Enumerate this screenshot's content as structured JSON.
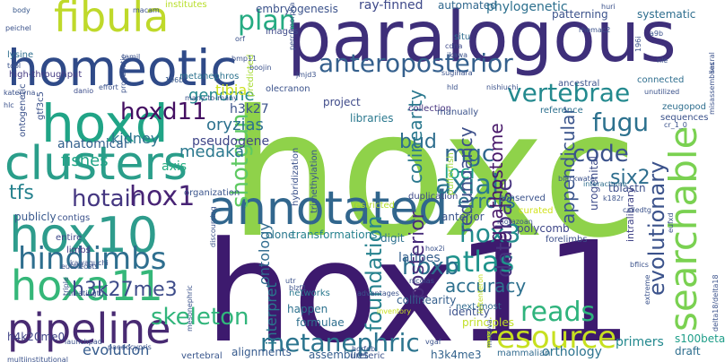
{
  "words": [
    {
      "text": "hoxc",
      "color": "#8fd24a"
    },
    {
      "text": "hox11",
      "color": "#3d1a6e"
    },
    {
      "text": "paralogous",
      "color": "#3e2f7a"
    },
    {
      "text": "annotated",
      "color": "#31668d"
    },
    {
      "text": "searchable",
      "color": "#7ad151"
    },
    {
      "text": "homeotic",
      "color": "#2f4a88"
    },
    {
      "text": "hoxd",
      "color": "#20a486"
    },
    {
      "text": "clusters",
      "color": "#2a9e8a"
    },
    {
      "text": "fibula",
      "color": "#bfd92a"
    },
    {
      "text": "hox10",
      "color": "#2e9c8c"
    },
    {
      "text": "hoxa11",
      "color": "#35b779"
    },
    {
      "text": "pipeline",
      "color": "#482a72"
    },
    {
      "text": "hindlimbs",
      "color": "#2e6e8e"
    },
    {
      "text": "resource",
      "color": "#c7e020"
    },
    {
      "text": "anteroposterior",
      "color": "#35608d"
    },
    {
      "text": "vertebrae",
      "color": "#23898e"
    },
    {
      "text": "plan",
      "color": "#25ab82"
    },
    {
      "text": "skeleton",
      "color": "#31b57b"
    },
    {
      "text": "metanephric",
      "color": "#2b748e"
    },
    {
      "text": "atlas",
      "color": "#1f938c"
    },
    {
      "text": "reads",
      "color": "#2eb37c"
    },
    {
      "text": "axial",
      "color": "#2a788e"
    },
    {
      "text": "code",
      "color": "#3b528b"
    },
    {
      "text": "fugu",
      "color": "#2c718e"
    },
    {
      "text": "shotgun",
      "color": "#5ec962"
    },
    {
      "text": "hotair",
      "color": "#453781"
    },
    {
      "text": "hox1",
      "color": "#482475"
    },
    {
      "text": "hoxd11",
      "color": "#440f62"
    },
    {
      "text": "hox3",
      "color": "#228c8d"
    },
    {
      "text": "hoxb",
      "color": "#2c718e"
    },
    {
      "text": "evolutionary",
      "color": "#3b528b"
    },
    {
      "text": "database",
      "color": "#46327e"
    },
    {
      "text": "foundation",
      "color": "#26828e"
    },
    {
      "text": "h3k27me3",
      "color": "#3e4c8a"
    },
    {
      "text": "tfs",
      "color": "#26828e"
    },
    {
      "text": "errors",
      "color": "#2c728e"
    },
    {
      "text": "accuracy",
      "color": "#2d708e"
    },
    {
      "text": "posterior",
      "color": "#472c7a"
    },
    {
      "text": "medaka",
      "color": "#2a788e"
    },
    {
      "text": "mgc",
      "color": "#31678e"
    },
    {
      "text": "bud",
      "color": "#2e6e8e"
    },
    {
      "text": "six2",
      "color": "#2e6e8e"
    },
    {
      "text": "colinearity",
      "color": "#2a788e"
    },
    {
      "text": "redundancy",
      "color": "#3c4f8a"
    },
    {
      "text": "appendicular",
      "color": "#3a548c"
    },
    {
      "text": "gnathostome",
      "color": "#48186a"
    },
    {
      "text": "loci",
      "color": "#1fa188"
    },
    {
      "text": "oryzias",
      "color": "#2c718e"
    },
    {
      "text": "genome",
      "color": "#23888e"
    },
    {
      "text": "kidney",
      "color": "#2b758e"
    },
    {
      "text": "fishes",
      "color": "#20a386"
    },
    {
      "text": "tibia",
      "color": "#cde11d"
    },
    {
      "text": "h3k27",
      "color": "#3b528b"
    },
    {
      "text": "pseudogene",
      "color": "#404688"
    },
    {
      "text": "anatomical",
      "color": "#34618d"
    },
    {
      "text": "axis",
      "color": "#27ad81"
    },
    {
      "text": "ontology",
      "color": "#2f6b8e"
    },
    {
      "text": "interpret",
      "color": "#2a788e"
    },
    {
      "text": "evolution",
      "color": "#365c8d"
    },
    {
      "text": "h4k20me0",
      "color": "#414487"
    },
    {
      "text": "ray-finned",
      "color": "#3e4989"
    },
    {
      "text": "embryogenesis",
      "color": "#3b528b"
    },
    {
      "text": "automated",
      "color": "#31688e"
    },
    {
      "text": "phylogenetic",
      "color": "#2d708e"
    },
    {
      "text": "patterning",
      "color": "#3b528b"
    },
    {
      "text": "systematic",
      "color": "#2e6e8e"
    },
    {
      "text": "project",
      "color": "#3e4a89"
    },
    {
      "text": "libraries",
      "color": "#2a788e"
    },
    {
      "text": "collection",
      "color": "#46337e"
    },
    {
      "text": "transformations",
      "color": "#26828e"
    },
    {
      "text": "clone",
      "color": "#2a788e"
    },
    {
      "text": "digit",
      "color": "#2d718e"
    },
    {
      "text": "anterior",
      "color": "#3a548c"
    },
    {
      "text": "duplication",
      "color": "#3e4a89"
    },
    {
      "text": "conserved",
      "color": "#3b528b"
    },
    {
      "text": "curated",
      "color": "#d2e21b"
    },
    {
      "text": "polycomb",
      "color": "#3f4788"
    },
    {
      "text": "latipes",
      "color": "#355f8d"
    },
    {
      "text": "orthology",
      "color": "#2c738e"
    },
    {
      "text": "primers",
      "color": "#23898e"
    },
    {
      "text": "mammalian",
      "color": "#306a8e"
    },
    {
      "text": "alignments",
      "color": "#375b8d"
    },
    {
      "text": "assemblies",
      "color": "#355e8d"
    },
    {
      "text": "h3k4me3",
      "color": "#33638d"
    },
    {
      "text": "identity",
      "color": "#3b518b"
    },
    {
      "text": "principles",
      "color": "#c0df25"
    },
    {
      "text": "formulae",
      "color": "#2e6f8e"
    },
    {
      "text": "happen",
      "color": "#2d718e"
    },
    {
      "text": "collinearity",
      "color": "#355f8d"
    },
    {
      "text": "vertebral",
      "color": "#39568c"
    },
    {
      "text": "s100beta",
      "color": "#1f9e89"
    },
    {
      "text": "draft",
      "color": "#2e6e8e"
    },
    {
      "text": "urogenital",
      "color": "#3e4c8a"
    },
    {
      "text": "tblastn",
      "color": "#3d4e8a"
    },
    {
      "text": "intralibrary",
      "color": "#414487"
    },
    {
      "text": "forelimbs",
      "color": "#3c4f8a"
    },
    {
      "text": "next-most",
      "color": "#306a8e"
    },
    {
      "text": "networks",
      "color": "#2a788e"
    },
    {
      "text": "ureteric",
      "color": "#3b528b"
    },
    {
      "text": "publicly",
      "color": "#38588c"
    },
    {
      "text": "entire",
      "color": "#3f4889"
    },
    {
      "text": "contigs",
      "color": "#3b528b"
    },
    {
      "text": "limbs",
      "color": "#453882"
    },
    {
      "text": "organization",
      "color": "#3a548c"
    },
    {
      "text": "restricted",
      "color": "#b5de2b"
    },
    {
      "text": "hybridization",
      "color": "#3b528b"
    },
    {
      "text": "trimethylation",
      "color": "#39558c"
    },
    {
      "text": "high-throughput",
      "color": "#443a83"
    },
    {
      "text": "lysine",
      "color": "#2e6e8e"
    },
    {
      "text": "tool",
      "color": "#3b528b"
    },
    {
      "text": "body",
      "color": "#38588c"
    },
    {
      "text": "danio",
      "color": "#3d4d8a"
    },
    {
      "text": "ontogenetic",
      "color": "#3b528b"
    },
    {
      "text": "gtf3c5",
      "color": "#3b528b"
    },
    {
      "text": "metanephros",
      "color": "#2c728e"
    },
    {
      "text": "images",
      "color": "#3e4a89"
    },
    {
      "text": "situ",
      "color": "#2e6e8e"
    },
    {
      "text": "manually",
      "color": "#3b528b"
    },
    {
      "text": "reference",
      "color": "#2d708e"
    },
    {
      "text": "ancestral",
      "color": "#3b528b"
    },
    {
      "text": "connected",
      "color": "#2e6e8e"
    },
    {
      "text": "cdna",
      "color": "#3e4989"
    },
    {
      "text": "institutes",
      "color": "#b8de29"
    },
    {
      "text": "macam",
      "color": "#3b528b"
    },
    {
      "text": "orf",
      "color": "#3b528b"
    },
    {
      "text": "196b",
      "color": "#38598c"
    },
    {
      "text": "pufferfish",
      "color": "#a0da39"
    },
    {
      "text": "interactome",
      "color": "#2e6e8e"
    },
    {
      "text": "calledtg",
      "color": "#3b528b"
    },
    {
      "text": "blackwater",
      "color": "#3b528b"
    },
    {
      "text": "k182r",
      "color": "#3b528b"
    },
    {
      "text": "motazoan",
      "color": "#3b528b"
    },
    {
      "text": "zeugopod",
      "color": "#2e6e8e"
    },
    {
      "text": "sequences",
      "color": "#3b528b"
    },
    {
      "text": "unutilized",
      "color": "#3b528b"
    },
    {
      "text": "sacral",
      "color": "#3b528b"
    },
    {
      "text": "peichel",
      "color": "#3b528b"
    },
    {
      "text": "kateryna",
      "color": "#3b528b"
    },
    {
      "text": "hlc",
      "color": "#3b528b"
    },
    {
      "text": "treatingtg",
      "color": "#3b528b"
    },
    {
      "text": "kawaguchi",
      "color": "#3b528b"
    },
    {
      "text": "launchpad",
      "color": "#3b528b"
    },
    {
      "text": "paedocypris",
      "color": "#3b528b"
    },
    {
      "text": "multiinstitutional",
      "color": "#3b528b"
    },
    {
      "text": "horfdb",
      "color": "#3b528b"
    },
    {
      "text": "vgaf",
      "color": "#3b528b"
    },
    {
      "text": "hox2i",
      "color": "#3b528b"
    },
    {
      "text": "leftenteron",
      "color": "#c2df23"
    },
    {
      "text": "olecranon",
      "color": "#3b528b"
    },
    {
      "text": "predicted",
      "color": "#a8db34"
    },
    {
      "text": "jmjd3",
      "color": "#3b528b"
    },
    {
      "text": "bmp11",
      "color": "#3b528b"
    },
    {
      "text": "boojin",
      "color": "#3b528b"
    },
    {
      "text": "ikawa",
      "color": "#3b528b"
    },
    {
      "text": "sugihara",
      "color": "#3b528b"
    },
    {
      "text": "hld",
      "color": "#3b528b"
    },
    {
      "text": "nishiuchi",
      "color": "#3b528b"
    },
    {
      "text": "rhemac2",
      "color": "#3b528b"
    },
    {
      "text": "a9b",
      "color": "#3b528b"
    },
    {
      "text": "196i",
      "color": "#3b528b"
    },
    {
      "text": "nle",
      "color": "#3b528b"
    },
    {
      "text": "cr_1_0",
      "color": "#3b528b"
    },
    {
      "text": "bflics",
      "color": "#3b528b"
    },
    {
      "text": "extreme",
      "color": "#3b528b"
    },
    {
      "text": "eufxd",
      "color": "#3b528b"
    },
    {
      "text": "delta18/delta18",
      "color": "#3b528b"
    },
    {
      "text": "advantages",
      "color": "#3b528b"
    },
    {
      "text": "blzf1",
      "color": "#3b528b"
    },
    {
      "text": "utr",
      "color": "#3b528b"
    },
    {
      "text": "discoursing",
      "color": "#3b528b"
    },
    {
      "text": "inventory",
      "color": "#c8e020"
    },
    {
      "text": "mesonephric",
      "color": "#3b528b"
    },
    {
      "text": "euteleosts",
      "color": "#3b528b"
    },
    {
      "text": "triple",
      "color": "#3b528b"
    },
    {
      "text": "many-to-many",
      "color": "#3b528b"
    },
    {
      "text": "effort",
      "color": "#3b528b"
    },
    {
      "text": "percomorpha",
      "color": "#3b528b"
    },
    {
      "text": "misassemblies",
      "color": "#3b528b"
    },
    {
      "text": "progenetic",
      "color": "#3b528b"
    },
    {
      "text": "tamil",
      "color": "#3b528b"
    },
    {
      "text": "huri",
      "color": "#3b528b"
    },
    {
      "text": "nicolas",
      "color": "#3b528b"
    },
    {
      "text": "makova",
      "color": "#3b528b"
    }
  ]
}
